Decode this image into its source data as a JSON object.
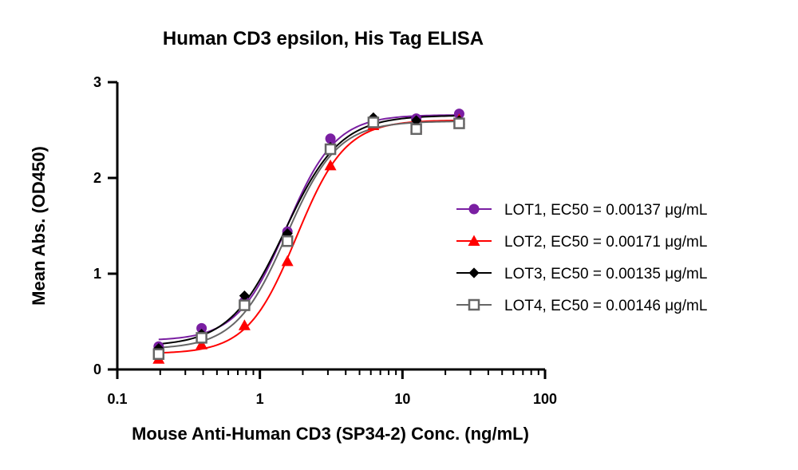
{
  "chart_data": {
    "type": "scatter",
    "title": "Human CD3 epsilon, His Tag ELISA",
    "xlabel": "Mouse Anti-Human CD3 (SP34-2) Conc. (ng/mL)",
    "ylabel": "Mean Abs. (OD450)",
    "xscale": "log",
    "xlim": [
      0.1,
      100
    ],
    "ylim": [
      0,
      3
    ],
    "xticks": [
      0.1,
      1,
      10,
      100
    ],
    "xtick_labels": [
      "0.1",
      "1",
      "10",
      "100"
    ],
    "yticks": [
      0,
      1,
      2,
      3
    ],
    "ytick_labels": [
      "0",
      "1",
      "2",
      "3"
    ],
    "grid": false,
    "legend_position": "right",
    "x": [
      0.195,
      0.39,
      0.78,
      1.56,
      3.125,
      6.25,
      12.5,
      25
    ],
    "series": [
      {
        "name": "LOT1, EC50 = 0.00137 μg/mL",
        "color": "#7a1fa2",
        "marker": "circle",
        "values": [
          0.24,
          0.43,
          0.71,
          1.44,
          2.41,
          2.56,
          2.62,
          2.67
        ]
      },
      {
        "name": "LOT2, EC50 = 0.00171 μg/mL",
        "color": "#ff0000",
        "marker": "triangle",
        "values": [
          0.11,
          0.26,
          0.46,
          1.13,
          2.13,
          2.55,
          2.53,
          2.61
        ]
      },
      {
        "name": "LOT3, EC50 = 0.00135 μg/mL",
        "color": "#000000",
        "marker": "diamond",
        "values": [
          0.22,
          0.37,
          0.77,
          1.42,
          2.32,
          2.63,
          2.6,
          2.6
        ]
      },
      {
        "name": "LOT4, EC50 = 0.00146 μg/mL",
        "color": "#666666",
        "marker": "square-open",
        "values": [
          0.16,
          0.33,
          0.67,
          1.34,
          2.3,
          2.58,
          2.51,
          2.57
        ]
      }
    ]
  }
}
